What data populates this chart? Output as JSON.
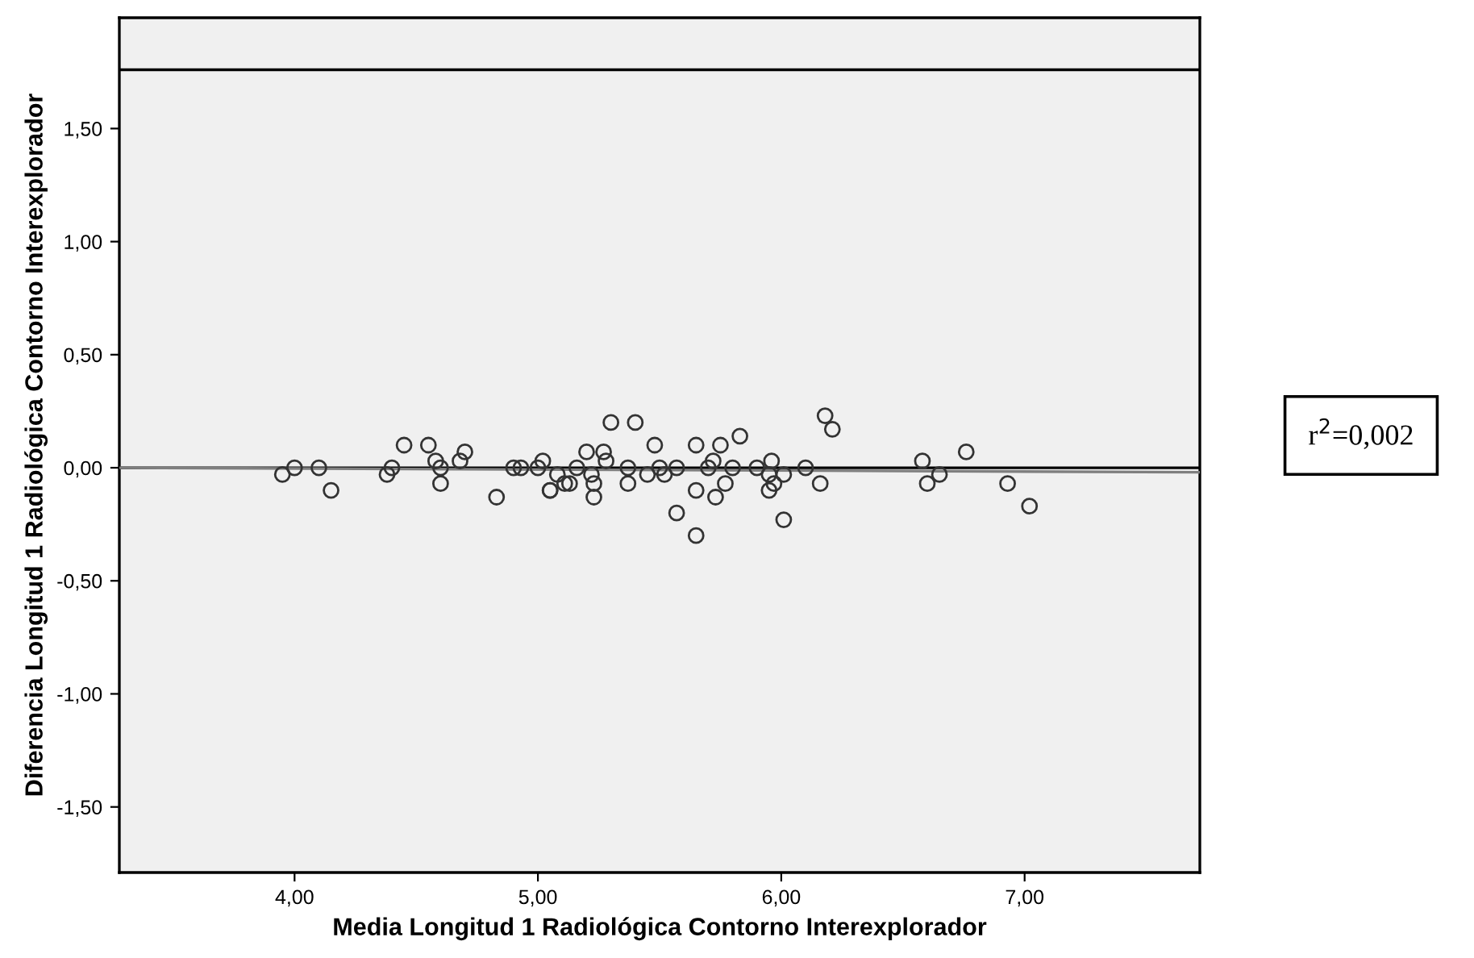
{
  "chart_data": {
    "type": "scatter",
    "xlabel": "Media Longitud 1 Radiológica Contorno Interexplorador",
    "ylabel": "Diferencia Longitud 1 Radiológica Contorno Interexplorador",
    "grid": false,
    "xlim": [
      3.28,
      7.72
    ],
    "xticks": [
      {
        "value": 4,
        "label": "4,00"
      },
      {
        "value": 5,
        "label": "5,00"
      },
      {
        "value": 6,
        "label": "6,00"
      },
      {
        "value": 7,
        "label": "7,00"
      }
    ],
    "ylim": [
      -1.79,
      1.99
    ],
    "yticks": [
      {
        "value": -1.5,
        "label": "-1,50"
      },
      {
        "value": -1,
        "label": "-1,00"
      },
      {
        "value": -0.5,
        "label": "-0,50"
      },
      {
        "value": 0,
        "label": "0,00"
      },
      {
        "value": 0.5,
        "label": "0,50"
      },
      {
        "value": 1,
        "label": "1,00"
      },
      {
        "value": 1.5,
        "label": "1,50"
      }
    ],
    "ref_lines": [
      {
        "axis": "y",
        "value": 0,
        "color": "#000000",
        "line_style": "solid"
      },
      {
        "axis": "y",
        "value": 1.76,
        "color": "#000000",
        "line_style": "solid"
      }
    ],
    "annotations": [
      "r$^{2}$=0,002"
    ],
    "series": [
      {
        "marker": "circle",
        "color": "#333333",
        "x": [
          3.95,
          4.0,
          4.1,
          4.15,
          4.4,
          4.38,
          4.45,
          4.55,
          4.58,
          4.6,
          4.6,
          4.68,
          4.7,
          4.83,
          4.9,
          4.93,
          5.0,
          5.02,
          5.05,
          5.05,
          5.08,
          5.11,
          5.13,
          5.16,
          5.2,
          5.22,
          5.23,
          5.23,
          5.27,
          5.28,
          5.3,
          5.37,
          5.37,
          5.4,
          5.45,
          5.48,
          5.5,
          5.52,
          5.57,
          5.57,
          5.65,
          5.65,
          5.65,
          5.7,
          5.72,
          5.73,
          5.75,
          5.77,
          5.8,
          5.83,
          5.9,
          5.95,
          5.96,
          5.95,
          5.97,
          6.01,
          6.01,
          6.1,
          6.16,
          6.18,
          6.21,
          6.58,
          6.6,
          6.65,
          6.76,
          6.93,
          7.02
        ],
        "values": [
          -0.03,
          0.0,
          0.0,
          -0.1,
          0.0,
          -0.03,
          0.1,
          0.1,
          0.03,
          0.0,
          -0.07,
          0.03,
          0.07,
          -0.13,
          0.0,
          0.0,
          0.0,
          0.03,
          -0.1,
          -0.1,
          -0.03,
          -0.07,
          -0.07,
          0.0,
          0.07,
          -0.03,
          -0.07,
          -0.13,
          0.07,
          0.03,
          0.2,
          0.0,
          -0.07,
          0.2,
          -0.03,
          0.1,
          0.0,
          -0.03,
          0.0,
          -0.2,
          0.1,
          -0.1,
          -0.3,
          0.0,
          0.03,
          -0.13,
          0.1,
          -0.07,
          0.0,
          0.14,
          0.0,
          -0.1,
          0.03,
          -0.03,
          -0.07,
          -0.03,
          -0.23,
          0.0,
          -0.07,
          0.23,
          0.17,
          0.03,
          -0.07,
          -0.03,
          0.07,
          -0.07,
          -0.17
        ]
      },
      {
        "type": "line",
        "color": "#7f7f7f",
        "x": [
          3.28,
          7.72
        ],
        "values": [
          0.0,
          -0.02
        ]
      }
    ]
  }
}
